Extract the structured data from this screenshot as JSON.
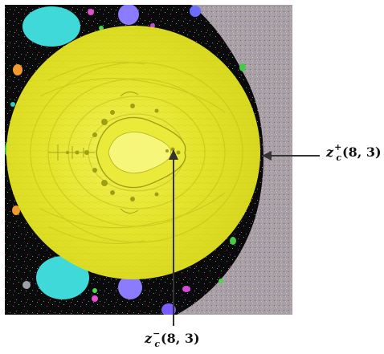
{
  "labels": {
    "right": {
      "var": "z",
      "sub": "c",
      "sup": "+",
      "args": "(8, 3)"
    },
    "bottom": {
      "var": "z",
      "sub": "c",
      "sup": "−",
      "args": "(8, 3)"
    }
  },
  "colors": {
    "background_dark": "#0a0a0a",
    "disk_yellow": "#e6e632",
    "disk_yellow_dark": "#b8b81e",
    "bulb_cyan": "#3fd9d9",
    "bulb_violet": "#8b7bff",
    "noise_gray": "#a59aa0",
    "arrow": "#333333"
  }
}
